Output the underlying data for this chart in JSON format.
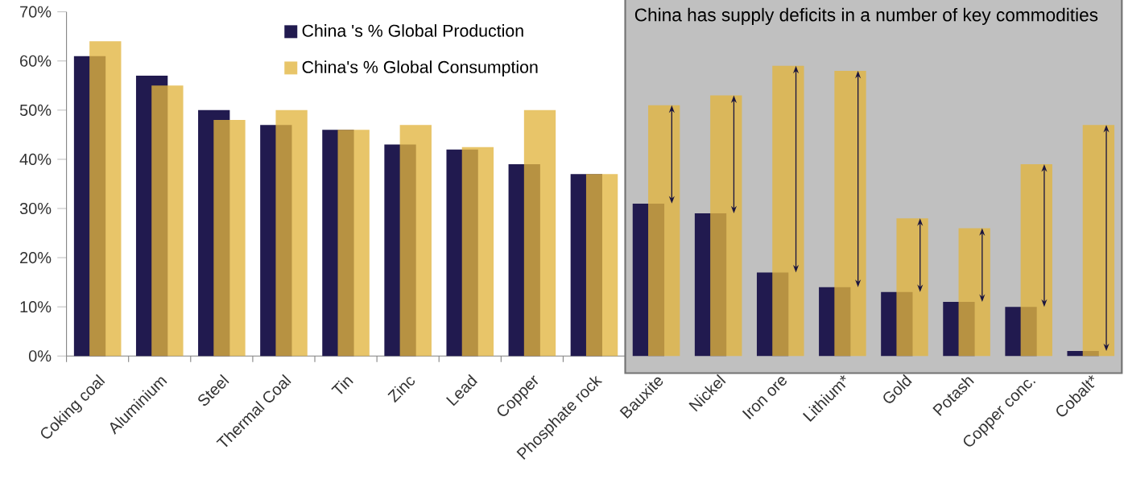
{
  "chart_data": {
    "type": "bar",
    "categories": [
      "Coking coal",
      "Aluminium",
      "Steel",
      "Thermal Coal",
      "Tin",
      "Zinc",
      "Lead",
      "Copper",
      "Phosphate rock",
      "Bauxite",
      "Nickel",
      "Iron ore",
      "Lithium*",
      "Gold",
      "Potash",
      "Copper conc.",
      "Cobalt*"
    ],
    "series": [
      {
        "name": "China 's % Global Production",
        "color": "#211a4f",
        "values": [
          61,
          57,
          50,
          47,
          46,
          43,
          42,
          39,
          37,
          31,
          29,
          17,
          14,
          13,
          11,
          10,
          1
        ]
      },
      {
        "name": "China's % Global Consumption",
        "color": "#e2b53f",
        "values": [
          64,
          55,
          48,
          50,
          46,
          47,
          42.5,
          50,
          37,
          51,
          53,
          59,
          58,
          28,
          26,
          39,
          47
        ]
      }
    ],
    "ylim": [
      0,
      70
    ],
    "yticks": [
      {
        "value": 0,
        "label": "0%"
      },
      {
        "value": 10,
        "label": "10%"
      },
      {
        "value": 20,
        "label": "20%"
      },
      {
        "value": 30,
        "label": "30%"
      },
      {
        "value": 40,
        "label": "40%"
      },
      {
        "value": 50,
        "label": "50%"
      },
      {
        "value": 60,
        "label": "60%"
      },
      {
        "value": 70,
        "label": "70%"
      }
    ],
    "bands": [
      {
        "axis": "x",
        "from": "Bauxite",
        "to": "Cobalt*",
        "label": "China has supply deficits in a number of key commodities",
        "color": "#c0c0c0"
      }
    ],
    "legend": "top",
    "grid": false
  }
}
